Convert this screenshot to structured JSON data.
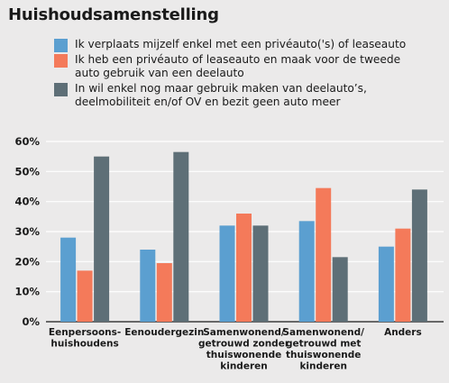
{
  "title": "Huishoudsamenstelling",
  "colors": {
    "blue": "#5b9fd0",
    "orange": "#f47a5a",
    "slate": "#5e6f77",
    "grid": "#ffffff",
    "background": "#ebeaea"
  },
  "chart_data": {
    "type": "bar",
    "title": "Huishoudsamenstelling",
    "xlabel": "",
    "ylabel": "",
    "ylim": [
      0,
      60
    ],
    "yticks": [
      "0%",
      "10%",
      "20%",
      "30%",
      "40%",
      "50%",
      "60%"
    ],
    "grid": true,
    "legend_position": "top",
    "categories": [
      [
        "Eenpersoons-",
        "huishoudens"
      ],
      [
        "Eenoudergezin"
      ],
      [
        "Samenwonend/",
        "getrouwd zonder",
        "thuiswonende",
        "kinderen"
      ],
      [
        "Samenwonend/",
        "getrouwd met",
        "thuiswonende",
        "kinderen"
      ],
      [
        "Anders"
      ]
    ],
    "series": [
      {
        "name": [
          "Ik verplaats mijzelf enkel met een privéauto('s) of leaseauto"
        ],
        "color": "#5b9fd0",
        "values": [
          28,
          24,
          32,
          33.5,
          25
        ]
      },
      {
        "name": [
          "Ik heb een privéauto of leaseauto en maak voor de tweede",
          "auto gebruik van een deelauto"
        ],
        "color": "#f47a5a",
        "values": [
          17,
          19.5,
          36,
          44.5,
          31
        ]
      },
      {
        "name": [
          "In wil enkel nog maar gebruik maken van deelauto’s,",
          "deelmobiliteit en/of OV en bezit geen auto meer"
        ],
        "color": "#5e6f77",
        "values": [
          55,
          56.5,
          32,
          21.5,
          44
        ]
      }
    ]
  }
}
